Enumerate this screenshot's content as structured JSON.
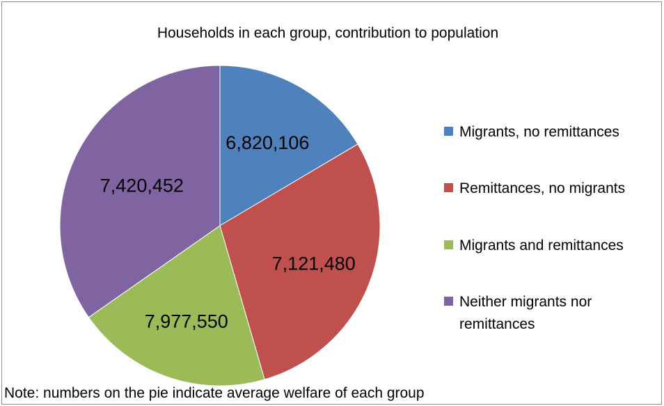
{
  "chart_data": {
    "type": "pie",
    "title": "Households in each group, contribution to population",
    "note": "Note: numbers on the pie indicate average welfare of each group",
    "legend_position": "right",
    "slices": [
      {
        "name": "Migrants, no remittances",
        "label": "6,820,106",
        "share": 0.165,
        "color": "#4f81bd"
      },
      {
        "name": "Remittances, no migrants",
        "label": "7,121,480",
        "share": 0.29,
        "color": "#c0504d"
      },
      {
        "name": "Migrants and remittances",
        "label": "7,977,550",
        "share": 0.198,
        "color": "#9bbb59"
      },
      {
        "name": "Neither migrants nor remittances",
        "label": "7,420,452",
        "share": 0.347,
        "color": "#8064a2"
      }
    ]
  }
}
